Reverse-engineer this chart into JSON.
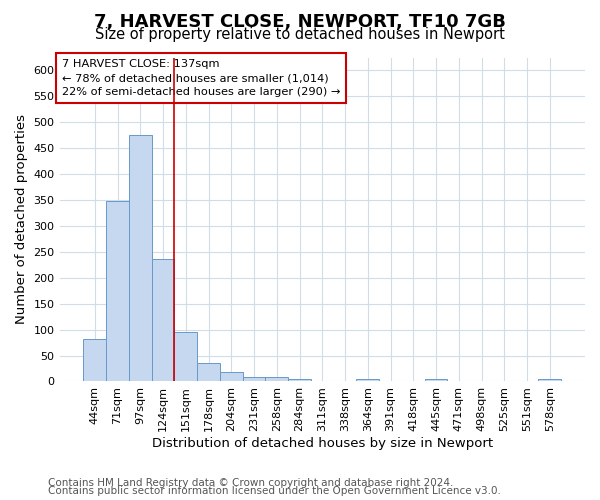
{
  "title": "7, HARVEST CLOSE, NEWPORT, TF10 7GB",
  "subtitle": "Size of property relative to detached houses in Newport",
  "xlabel": "Distribution of detached houses by size in Newport",
  "ylabel": "Number of detached properties",
  "categories": [
    "44sqm",
    "71sqm",
    "97sqm",
    "124sqm",
    "151sqm",
    "178sqm",
    "204sqm",
    "231sqm",
    "258sqm",
    "284sqm",
    "311sqm",
    "338sqm",
    "364sqm",
    "391sqm",
    "418sqm",
    "445sqm",
    "471sqm",
    "498sqm",
    "525sqm",
    "551sqm",
    "578sqm"
  ],
  "values": [
    82,
    348,
    476,
    236,
    96,
    35,
    18,
    8,
    8,
    5,
    0,
    0,
    5,
    0,
    0,
    5,
    0,
    0,
    0,
    0,
    5
  ],
  "bar_color": "#c5d8ef",
  "bar_edge_color": "#6699cc",
  "vline_x": 3.5,
  "vline_color": "#cc0000",
  "annotation_text": "7 HARVEST CLOSE: 137sqm\n← 78% of detached houses are smaller (1,014)\n22% of semi-detached houses are larger (290) →",
  "annotation_box_color": "white",
  "annotation_box_edge": "#cc0000",
  "ylim": [
    0,
    625
  ],
  "yticks": [
    0,
    50,
    100,
    150,
    200,
    250,
    300,
    350,
    400,
    450,
    500,
    550,
    600
  ],
  "footer1": "Contains HM Land Registry data © Crown copyright and database right 2024.",
  "footer2": "Contains public sector information licensed under the Open Government Licence v3.0.",
  "bg_color": "#ffffff",
  "axes_bg_color": "#ffffff",
  "grid_color": "#d0dce8",
  "title_fontsize": 13,
  "subtitle_fontsize": 10.5,
  "tick_fontsize": 8,
  "label_fontsize": 9.5,
  "footer_fontsize": 7.5
}
